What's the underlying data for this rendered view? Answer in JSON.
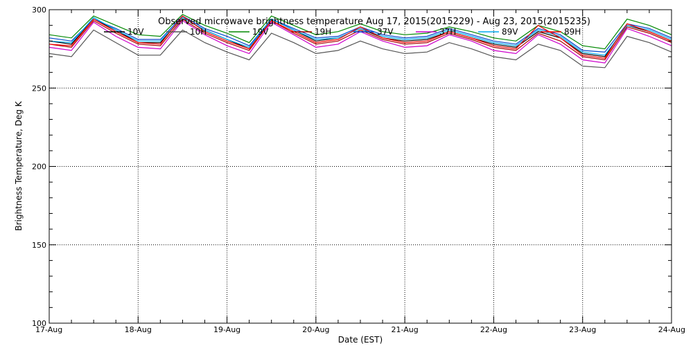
{
  "chart_data": {
    "type": "line",
    "title": "Observed microwave brightness temperature Aug 17, 2015(2015229) - Aug 23, 2015(2015235)",
    "xlabel": "Date (EST)",
    "ylabel": "Brightness Temperature, Deg K",
    "xlim": [
      "2015-08-17",
      "2015-08-24"
    ],
    "ylim": [
      100,
      300
    ],
    "x_ticks": [
      "17-Aug",
      "18-Aug",
      "19-Aug",
      "20-Aug",
      "21-Aug",
      "22-Aug",
      "23-Aug",
      "24-Aug"
    ],
    "y_ticks": [
      "100",
      "150",
      "200",
      "250",
      "300"
    ],
    "grid": true,
    "legend": "top",
    "x": [
      "2015-08-17 00:00",
      "2015-08-17 06:00",
      "2015-08-17 12:00",
      "2015-08-17 18:00",
      "2015-08-18 00:00",
      "2015-08-18 06:00",
      "2015-08-18 12:00",
      "2015-08-18 18:00",
      "2015-08-19 00:00",
      "2015-08-19 06:00",
      "2015-08-19 12:00",
      "2015-08-19 18:00",
      "2015-08-20 00:00",
      "2015-08-20 06:00",
      "2015-08-20 12:00",
      "2015-08-20 18:00",
      "2015-08-21 00:00",
      "2015-08-21 06:00",
      "2015-08-21 12:00",
      "2015-08-21 18:00",
      "2015-08-22 00:00",
      "2015-08-22 06:00",
      "2015-08-22 12:00",
      "2015-08-22 18:00",
      "2015-08-23 00:00",
      "2015-08-23 06:00",
      "2015-08-23 12:00",
      "2015-08-23 18:00",
      "2015-08-24 00:00"
    ],
    "series": [
      {
        "name": "10V",
        "color": "#000000",
        "values": [
          280,
          278,
          294,
          287,
          279,
          279,
          295,
          287,
          281,
          275,
          294,
          287,
          280,
          282,
          288,
          282,
          280,
          281,
          286,
          282,
          278,
          276,
          286,
          282,
          272,
          270,
          290,
          286,
          280
        ]
      },
      {
        "name": "10H",
        "color": "#555555",
        "values": [
          272,
          270,
          287,
          279,
          271,
          271,
          287,
          279,
          273,
          268,
          285,
          279,
          272,
          274,
          280,
          275,
          272,
          273,
          279,
          275,
          270,
          268,
          278,
          274,
          264,
          263,
          283,
          279,
          273
        ]
      },
      {
        "name": "19V",
        "color": "#008800",
        "values": [
          284,
          282,
          296,
          290,
          284,
          283,
          297,
          290,
          285,
          279,
          296,
          290,
          284,
          286,
          291,
          286,
          284,
          285,
          289,
          286,
          282,
          280,
          290,
          286,
          277,
          275,
          294,
          290,
          284
        ]
      },
      {
        "name": "19H",
        "color": "#aa0000",
        "values": [
          278,
          276,
          293,
          285,
          278,
          277,
          294,
          285,
          279,
          274,
          293,
          285,
          278,
          280,
          287,
          281,
          278,
          279,
          285,
          281,
          276,
          274,
          285,
          280,
          270,
          268,
          289,
          285,
          279
        ]
      },
      {
        "name": "37V",
        "color": "#0044cc",
        "values": [
          282,
          280,
          294,
          288,
          281,
          281,
          296,
          288,
          283,
          277,
          294,
          288,
          282,
          283,
          289,
          284,
          282,
          283,
          288,
          284,
          280,
          278,
          288,
          284,
          274,
          273,
          291,
          288,
          282
        ]
      },
      {
        "name": "37H",
        "color": "#cc00cc",
        "values": [
          276,
          274,
          292,
          283,
          276,
          275,
          293,
          284,
          277,
          272,
          292,
          284,
          276,
          278,
          286,
          280,
          276,
          277,
          284,
          280,
          274,
          272,
          284,
          278,
          268,
          266,
          288,
          283,
          277
        ]
      },
      {
        "name": "89V",
        "color": "#00aaee",
        "values": [
          280,
          279,
          295,
          287,
          280,
          280,
          295,
          287,
          281,
          276,
          294,
          287,
          281,
          282,
          288,
          283,
          281,
          282,
          287,
          283,
          279,
          277,
          287,
          283,
          273,
          271,
          290,
          287,
          281
        ]
      },
      {
        "name": "89H",
        "color": "#ff0000",
        "values": [
          278,
          277,
          294,
          286,
          279,
          278,
          296,
          286,
          280,
          275,
          293,
          286,
          279,
          281,
          289,
          282,
          279,
          280,
          286,
          282,
          277,
          275,
          290,
          282,
          271,
          269,
          291,
          286,
          280
        ]
      }
    ]
  }
}
